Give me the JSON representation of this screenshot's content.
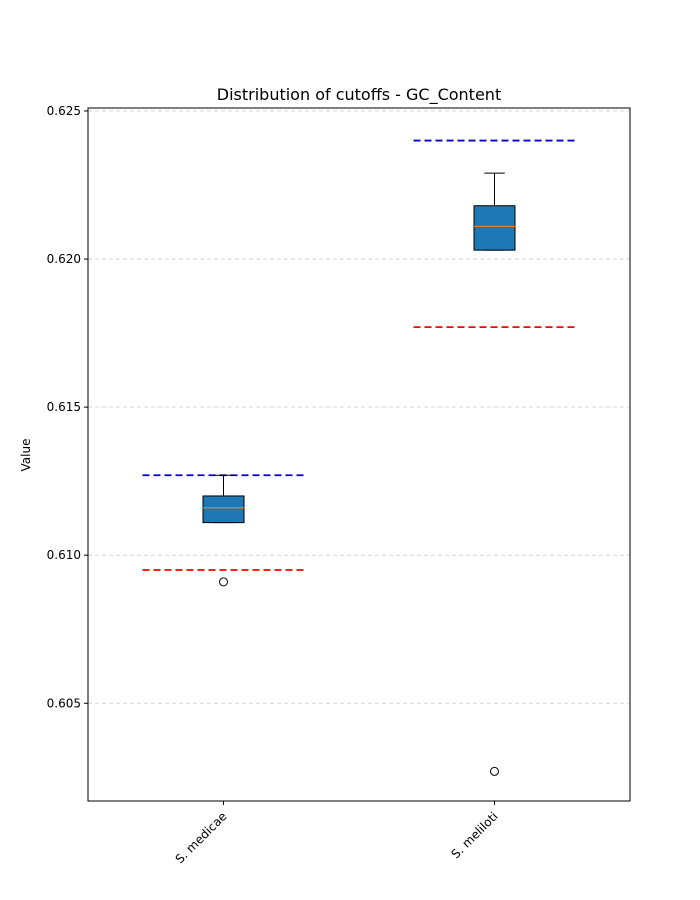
{
  "chart_data": {
    "type": "box",
    "title": "Distribution of cutoffs - GC_Content",
    "xlabel": "",
    "ylabel": "Value",
    "ylim": [
      0.6017,
      0.6251
    ],
    "yticks": [
      0.605,
      0.61,
      0.615,
      0.62,
      0.625
    ],
    "ytick_labels": [
      "0.605",
      "0.610",
      "0.615",
      "0.620",
      "0.625"
    ],
    "grid": "y-dashed",
    "categories": [
      "S. medicae",
      "S. meliloti"
    ],
    "boxes": [
      {
        "name": "S. medicae",
        "whisker_low": 0.6111,
        "q1": 0.6111,
        "median": 0.6116,
        "q3": 0.612,
        "whisker_high": 0.6127,
        "outliers": [
          0.6091
        ],
        "upper_cutoff": 0.6127,
        "lower_cutoff": 0.6095
      },
      {
        "name": "S. meliloti",
        "whisker_low": 0.6203,
        "q1": 0.6203,
        "median": 0.6211,
        "q3": 0.6218,
        "whisker_high": 0.6229,
        "outliers": [
          0.6027
        ],
        "upper_cutoff": 0.624,
        "lower_cutoff": 0.6177
      }
    ],
    "colors": {
      "box_fill": "#1f77b4",
      "median": "#ff7f0e",
      "upper_cutoff": "#0000cc",
      "lower_cutoff": "#ff0000",
      "grid": "#cccccc"
    }
  }
}
